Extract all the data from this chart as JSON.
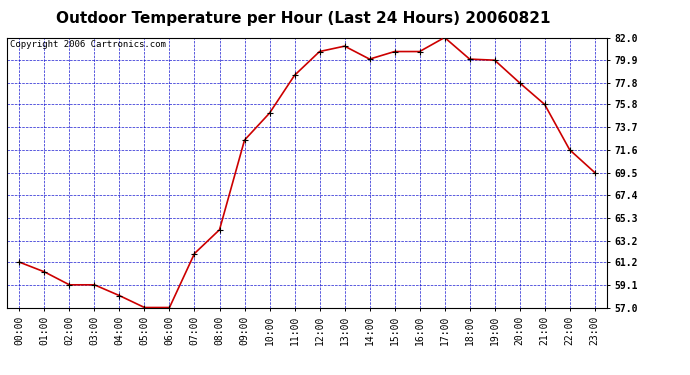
{
  "title": "Outdoor Temperature per Hour (Last 24 Hours) 20060821",
  "copyright": "Copyright 2006 Cartronics.com",
  "hours": [
    "00:00",
    "01:00",
    "02:00",
    "03:00",
    "04:00",
    "05:00",
    "06:00",
    "07:00",
    "08:00",
    "09:00",
    "10:00",
    "11:00",
    "12:00",
    "13:00",
    "14:00",
    "15:00",
    "16:00",
    "17:00",
    "18:00",
    "19:00",
    "20:00",
    "21:00",
    "22:00",
    "23:00"
  ],
  "temps": [
    61.2,
    60.3,
    59.1,
    59.1,
    58.1,
    57.0,
    57.0,
    62.0,
    64.2,
    72.5,
    75.0,
    78.5,
    80.7,
    81.2,
    80.0,
    80.7,
    80.7,
    82.0,
    80.0,
    79.9,
    77.8,
    75.8,
    71.6,
    69.5
  ],
  "line_color": "#cc0000",
  "marker_color": "#000000",
  "grid_color": "#0000cc",
  "bg_color": "#ffffff",
  "plot_bg_color": "#ffffff",
  "ylim": [
    57.0,
    82.0
  ],
  "yticks": [
    57.0,
    59.1,
    61.2,
    63.2,
    65.3,
    67.4,
    69.5,
    71.6,
    73.7,
    75.8,
    77.8,
    79.9,
    82.0
  ],
  "title_fontsize": 11,
  "copyright_fontsize": 6.5,
  "tick_fontsize": 7,
  "ytick_fontsize": 7
}
